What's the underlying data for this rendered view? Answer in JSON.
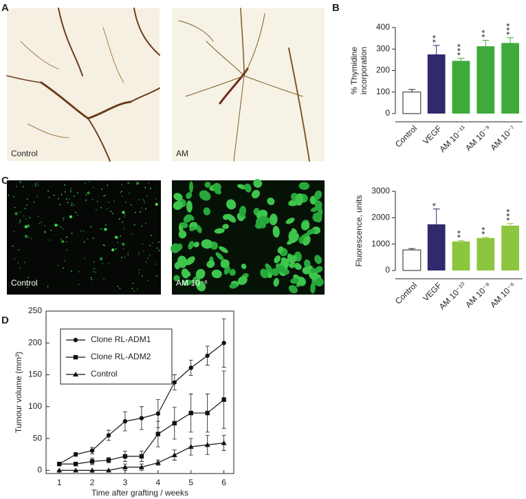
{
  "panel_labels": [
    "A",
    "B",
    "C",
    "D"
  ],
  "images": [
    {
      "caption": "Control"
    },
    {
      "caption": "AM"
    },
    {
      "caption": "Control"
    },
    {
      "caption": "AM 10⁻⁶"
    }
  ],
  "chart_data": [
    {
      "type": "bar",
      "y_label": [
        "% Thymidine",
        "incorporation"
      ],
      "categories": [
        "Control",
        "VEGF",
        "AM 10⁻¹¹",
        "AM 10⁻⁹",
        "AM 10⁻⁷"
      ],
      "values": [
        100,
        275,
        245,
        313,
        328
      ],
      "errors": [
        12,
        42,
        12,
        28,
        25
      ],
      "colors": [
        "#ffffff",
        "#2e2a6b",
        "#3daa3a",
        "#3daa3a",
        "#3daa3a"
      ],
      "annotations": [
        null,
        "**",
        "***",
        "**",
        "***"
      ],
      "ylim": [
        0,
        400
      ],
      "yticks": [
        0,
        100,
        200,
        300,
        400
      ]
    },
    {
      "type": "bar",
      "y_label": [
        "Fluorescence, units"
      ],
      "categories": [
        "Control",
        "VEGF",
        "AM 10⁻¹⁰",
        "AM 10⁻⁸",
        "AM 10⁻⁶"
      ],
      "values": [
        780,
        1750,
        1100,
        1230,
        1700
      ],
      "errors": [
        50,
        580,
        30,
        30,
        80
      ],
      "colors": [
        "#ffffff",
        "#2e2a6b",
        "#8cc63f",
        "#8cc63f",
        "#8cc63f"
      ],
      "annotations": [
        null,
        "*",
        "**",
        "**",
        "***"
      ],
      "ylim": [
        0,
        3000
      ],
      "yticks": [
        0,
        1000,
        2000,
        3000
      ]
    },
    {
      "type": "line",
      "x_label": "Time after grafting / weeks",
      "y_label": "Tumour volume (mm³)",
      "x": [
        1,
        1.5,
        2,
        2.5,
        3,
        3.5,
        4,
        4.5,
        5,
        5.5,
        6
      ],
      "series": [
        {
          "name": "Clone RL-ADM1",
          "marker": "circle",
          "color": "#111111",
          "values": [
            10,
            25,
            31,
            55,
            77,
            82,
            89,
            138,
            161,
            180,
            200
          ],
          "errors": [
            3,
            3,
            5,
            8,
            15,
            18,
            22,
            12,
            12,
            15,
            38
          ]
        },
        {
          "name": "Clone RL-ADM2",
          "marker": "square",
          "color": "#111111",
          "values": [
            10,
            10,
            14,
            16,
            22,
            22,
            57,
            74,
            90,
            90,
            111
          ],
          "errors": [
            3,
            3,
            5,
            4,
            8,
            8,
            20,
            25,
            30,
            30,
            45
          ]
        },
        {
          "name": "Control",
          "marker": "triangle",
          "color": "#111111",
          "values": [
            0,
            0,
            0,
            0,
            5,
            5,
            12,
            24,
            37,
            40,
            43
          ],
          "errors": [
            0,
            0,
            0,
            0,
            5,
            5,
            4,
            8,
            13,
            15,
            12
          ]
        }
      ],
      "xlim": [
        0.6,
        6.3
      ],
      "xticks": [
        1,
        2,
        3,
        4,
        5,
        6
      ],
      "ylim": [
        -5,
        250
      ],
      "yticks": [
        0,
        50,
        100,
        150,
        200,
        250
      ]
    }
  ]
}
